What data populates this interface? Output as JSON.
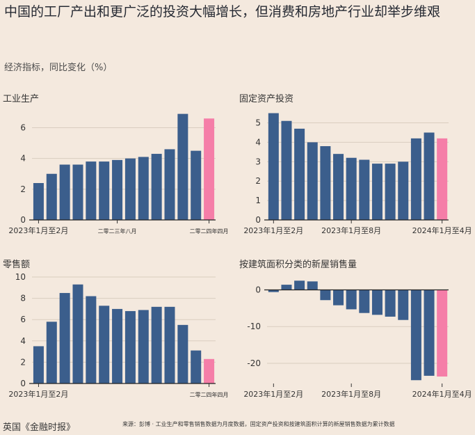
{
  "title": "中国的工厂产出和更广泛的投资大幅增长，但消费和房地产行业却举步维艰",
  "subtitle": "经济指标，同比变化（%）",
  "colors": {
    "bar": "#3b5e8c",
    "highlight": "#f57ea8",
    "zero_line": "#222222",
    "grid": "#d9cdbf"
  },
  "footer": {
    "source": "英国《金融时报》",
    "note": "来源：彭博 · 工业生产和零售销售数据为月度数据，固定资产投资和按建筑面积计算的新屋销售数据为累计数据"
  },
  "chart_data": [
    {
      "type": "bar",
      "title": "工业生产",
      "x": [
        "2023-01/02",
        "2023-03",
        "2023-04",
        "2023-05",
        "2023-06",
        "2023-07",
        "2023-08",
        "2023-09",
        "2023-10",
        "2023-11",
        "2023-12",
        "2024-01/02",
        "2024-03",
        "2024-04"
      ],
      "values": [
        2.4,
        3.0,
        3.6,
        3.6,
        3.8,
        3.8,
        3.9,
        4.0,
        4.1,
        4.3,
        4.6,
        6.9,
        4.5,
        6.6
      ],
      "highlight_last": true,
      "ylim": [
        0,
        7.2
      ],
      "yticks": [
        0,
        2,
        4,
        6
      ],
      "xtick_labels": [
        {
          "index": 0,
          "label": "2023年1月至2月"
        },
        {
          "index": 6,
          "label": "二零二三年八月"
        },
        {
          "index": 13,
          "label": "二零二四年四月"
        }
      ]
    },
    {
      "type": "bar",
      "title": "固定资产投资",
      "x": [
        "2023-01/02",
        "2023-01/03",
        "2023-01/04",
        "2023-01/05",
        "2023-01/06",
        "2023-01/07",
        "2023-01/08",
        "2023-01/09",
        "2023-01/10",
        "2023-01/11",
        "2023-01/12",
        "2024-01/02",
        "2024-01/03",
        "2024-01/04"
      ],
      "values": [
        5.5,
        5.1,
        4.7,
        4.0,
        3.8,
        3.4,
        3.2,
        3.1,
        2.9,
        2.9,
        3.0,
        4.2,
        4.5,
        4.2
      ],
      "highlight_last": true,
      "ylim": [
        0,
        5.7
      ],
      "yticks": [
        0,
        1,
        2,
        3,
        4,
        5
      ],
      "xtick_labels": [
        {
          "index": 0,
          "label": "2023年1月至2月"
        },
        {
          "index": 6,
          "label": "2023年1月至8月"
        },
        {
          "index": 13,
          "label": "2024年1月至4月"
        }
      ]
    },
    {
      "type": "bar",
      "title": "零售额",
      "x": [
        "2023-01/02",
        "2023-03",
        "2023-04",
        "2023-05",
        "2023-06",
        "2023-07",
        "2023-08",
        "2023-09",
        "2023-10",
        "2023-11",
        "2023-12",
        "2024-01/02",
        "2024-03",
        "2024-04"
      ],
      "values": [
        3.5,
        5.8,
        8.5,
        9.3,
        8.2,
        7.3,
        7.0,
        6.8,
        6.9,
        7.2,
        7.2,
        5.5,
        3.1,
        2.3
      ],
      "highlight_last": true,
      "ylim": [
        0,
        10
      ],
      "yticks": [
        0,
        2,
        4,
        6,
        8,
        10
      ],
      "xtick_labels": [
        {
          "index": 0,
          "label": "2023年1月至2月"
        },
        {
          "index": 13,
          "label": "二零二四年四月"
        }
      ]
    },
    {
      "type": "bar",
      "title": "按建筑面积分类的新屋销售量",
      "x": [
        "2023-01/02",
        "2023-01/03",
        "2023-01/04",
        "2023-01/05",
        "2023-01/06",
        "2023-01/07",
        "2023-01/08",
        "2023-01/09",
        "2023-01/10",
        "2023-01/11",
        "2023-01/12",
        "2024-01/02",
        "2024-01/03",
        "2024-01/04"
      ],
      "values": [
        -0.6,
        1.4,
        2.5,
        2.3,
        -2.8,
        -4.2,
        -5.3,
        -6.3,
        -6.8,
        -7.3,
        -8.2,
        -24.6,
        -23.4,
        -23.6
      ],
      "highlight_last": true,
      "ylim": [
        -25.5,
        3.5
      ],
      "yticks": [
        0,
        -10,
        -20
      ],
      "xtick_labels": [
        {
          "index": 0,
          "label": "2023年1月至2月"
        },
        {
          "index": 6,
          "label": "2023年1月至8月"
        },
        {
          "index": 13,
          "label": "2024年1月至4月"
        }
      ]
    }
  ]
}
